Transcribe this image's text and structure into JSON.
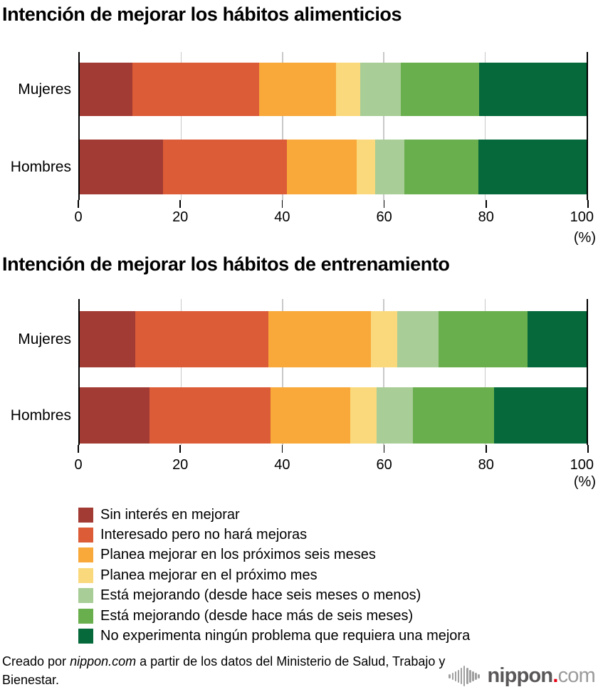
{
  "chart_data": [
    {
      "type": "bar",
      "orientation": "horizontal",
      "stacked": true,
      "title": "Intención de mejorar los hábitos alimenticios",
      "categories": [
        "Mujeres",
        "Hombres"
      ],
      "xlim": [
        0,
        100
      ],
      "xticks": [
        0,
        20,
        40,
        60,
        80,
        100
      ],
      "unit": "(%)",
      "grid": true,
      "series": [
        {
          "name": "Sin interés en mejorar",
          "color": "#a23b33",
          "values": [
            10.4,
            16.4
          ]
        },
        {
          "name": "Interesado pero no hará mejoras",
          "color": "#dc5c38",
          "values": [
            25.0,
            24.5
          ]
        },
        {
          "name": "Planea mejorar en los próximos seis meses",
          "color": "#f9a939",
          "values": [
            15.1,
            13.7
          ]
        },
        {
          "name": "Planea mejorar en el próximo mes",
          "color": "#fad97c",
          "values": [
            4.8,
            3.7
          ]
        },
        {
          "name": "Está mejorando (desde hace seis meses o menos)",
          "color": "#a8cd96",
          "values": [
            8.0,
            5.8
          ]
        },
        {
          "name": "Está mejorando (desde hace más de seis meses)",
          "color": "#6aaf4e",
          "values": [
            15.5,
            14.6
          ]
        },
        {
          "name": "No experimenta ningún problema que requiera una mejora",
          "color": "#05693b",
          "values": [
            21.2,
            21.3
          ]
        }
      ]
    },
    {
      "type": "bar",
      "orientation": "horizontal",
      "stacked": true,
      "title": "Intención de mejorar los hábitos de entrenamiento",
      "categories": [
        "Mujeres",
        "Hombres"
      ],
      "xlim": [
        0,
        100
      ],
      "xticks": [
        0,
        20,
        40,
        60,
        80,
        100
      ],
      "unit": "(%)",
      "grid": true,
      "series": [
        {
          "name": "Sin interés en mejorar",
          "color": "#a23b33",
          "values": [
            11.0,
            13.8
          ]
        },
        {
          "name": "Interesado pero no hará mejoras",
          "color": "#dc5c38",
          "values": [
            26.2,
            23.9
          ]
        },
        {
          "name": "Planea mejorar en los próximos seis meses",
          "color": "#f9a939",
          "values": [
            20.2,
            15.7
          ]
        },
        {
          "name": "Planea mejorar en el próximo mes",
          "color": "#fad97c",
          "values": [
            5.2,
            5.2
          ]
        },
        {
          "name": "Está mejorando (desde hace seis meses o menos)",
          "color": "#a8cd96",
          "values": [
            8.2,
            7.2
          ]
        },
        {
          "name": "Está mejorando (desde hace más de seis meses)",
          "color": "#6aaf4e",
          "values": [
            17.5,
            16.0
          ]
        },
        {
          "name": "No experimenta ningún problema que requiera una mejora",
          "color": "#05693b",
          "values": [
            11.7,
            18.2
          ]
        }
      ]
    }
  ],
  "axis": {
    "unit_label": "(%)"
  },
  "legend_title": "",
  "footer": {
    "prefix": "Creado por ",
    "source": "nippon.com",
    "suffix": " a partir de los datos del Ministerio de Salud, Trabajo y Bienestar."
  },
  "logo": {
    "name": "nippon",
    "dot": ".",
    "tld": "com"
  }
}
